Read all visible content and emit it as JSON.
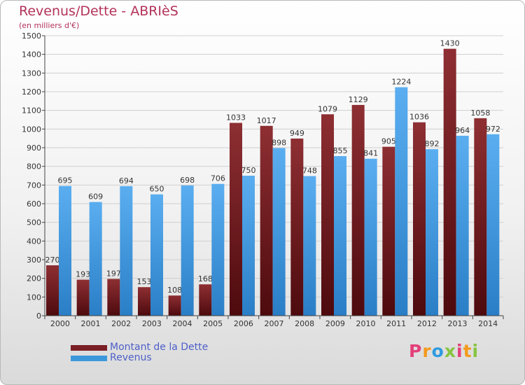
{
  "title": "Revenus/Dette - ABRIèS",
  "subtitle": "(en milliers d'€)",
  "legend": [
    {
      "label": "Montant de la Dette",
      "color": "#7a1f24"
    },
    {
      "label": "Revenus",
      "color": "#3d98db"
    }
  ],
  "logo": {
    "letters": [
      "P",
      "r",
      "o",
      "x",
      "i",
      "t",
      "i"
    ],
    "colors": [
      "#e3407a",
      "#f39a1e",
      "#2f9be0",
      "#86c440",
      "#e3407a",
      "#f39a1e",
      "#86c440"
    ]
  },
  "colors": {
    "debt_top": "#8e2f33",
    "debt_bottom": "#4d0a0d",
    "rev_top": "#5aaef0",
    "rev_bottom": "#2a7ec6",
    "axis": "#444444",
    "grid": "#cfcfcf"
  },
  "chart_data": {
    "type": "bar",
    "categories": [
      "2000",
      "2001",
      "2002",
      "2003",
      "2004",
      "2005",
      "2006",
      "2007",
      "2008",
      "2009",
      "2010",
      "2011",
      "2012",
      "2013",
      "2014"
    ],
    "series": [
      {
        "name": "Montant de la Dette",
        "values": [
          270,
          193,
          197,
          153,
          108,
          168,
          1033,
          1017,
          949,
          1079,
          1129,
          905,
          1036,
          1430,
          1058
        ]
      },
      {
        "name": "Revenus",
        "values": [
          695,
          609,
          694,
          650,
          698,
          706,
          750,
          898,
          748,
          855,
          841,
          1224,
          892,
          964,
          972
        ]
      }
    ],
    "yticks": [
      "0",
      "100",
      "200",
      "300",
      "400",
      "500",
      "600",
      "700",
      "800",
      "900",
      "1000",
      "1100",
      "1200",
      "1300",
      "1400",
      "1500"
    ],
    "ylim": [
      0,
      1500
    ],
    "grid": true,
    "legend_position": "bottom-left"
  }
}
